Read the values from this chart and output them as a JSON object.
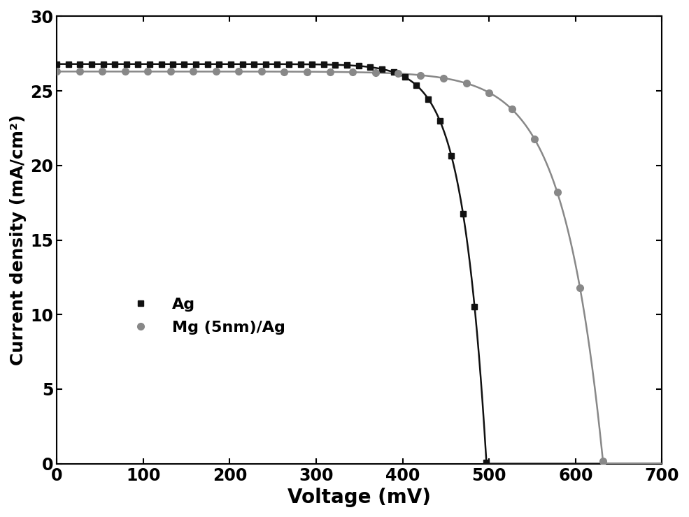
{
  "title": "",
  "xlabel": "Voltage (mV)",
  "ylabel": "Current density (mA/cm²)",
  "xlim": [
    0,
    700
  ],
  "ylim": [
    0,
    30
  ],
  "xticks": [
    0,
    100,
    200,
    300,
    400,
    500,
    600,
    700
  ],
  "yticks": [
    0,
    5,
    10,
    15,
    20,
    25,
    30
  ],
  "ag_color": "#111111",
  "mg_color": "#888888",
  "background_color": "#ffffff",
  "legend_labels": [
    "Ag",
    "Mg (5nm)/Ag"
  ],
  "xlabel_fontsize": 20,
  "ylabel_fontsize": 18,
  "tick_fontsize": 17,
  "legend_fontsize": 16,
  "ag_jsc": 26.8,
  "ag_voc": 497,
  "ag_sharpness": 18,
  "mg_jsc": 26.3,
  "mg_voc": 632,
  "mg_sharpness": 14,
  "n_markers_ag": 38,
  "n_markers_mg": 25
}
